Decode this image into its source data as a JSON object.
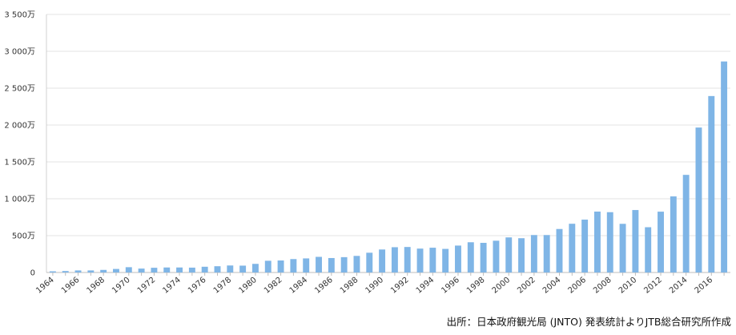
{
  "chart_data": {
    "type": "bar",
    "title": "",
    "xlabel": "",
    "ylabel": "",
    "ylim": [
      0,
      3500
    ],
    "y_ticks": [
      0,
      500,
      1000,
      1500,
      2000,
      2500,
      3000,
      3500
    ],
    "y_tick_labels": [
      "0",
      "500万",
      "1 000万",
      "1 500万",
      "2 000万",
      "2 500万",
      "3 000万",
      "3 500万"
    ],
    "grid": "horizontal",
    "bar_color": "#7fb5e6",
    "categories": [
      "1964",
      "1965",
      "1966",
      "1967",
      "1968",
      "1969",
      "1970",
      "1971",
      "1972",
      "1973",
      "1974",
      "1975",
      "1976",
      "1977",
      "1978",
      "1979",
      "1980",
      "1981",
      "1982",
      "1983",
      "1984",
      "1985",
      "1986",
      "1987",
      "1988",
      "1989",
      "1990",
      "1991",
      "1992",
      "1993",
      "1994",
      "1995",
      "1996",
      "1997",
      "1998",
      "1999",
      "2000",
      "2001",
      "2002",
      "2003",
      "2004",
      "2005",
      "2006",
      "2007",
      "2008",
      "2009",
      "2010",
      "2011",
      "2012",
      "2013",
      "2014",
      "2015",
      "2016",
      "2017"
    ],
    "x_tick_labels": [
      "1964",
      "",
      "1966",
      "",
      "1968",
      "",
      "1970",
      "",
      "1972",
      "",
      "1974",
      "",
      "1976",
      "",
      "1978",
      "",
      "1980",
      "",
      "1982",
      "",
      "1984",
      "",
      "1986",
      "",
      "1988",
      "",
      "1990",
      "",
      "1992",
      "",
      "1994",
      "",
      "1996",
      "",
      "1998",
      "",
      "2000",
      "",
      "2002",
      "",
      "2004",
      "",
      "2006",
      "",
      "2008",
      "",
      "2010",
      "",
      "2012",
      "",
      "2014",
      "",
      "2016",
      ""
    ],
    "values": [
      16,
      20,
      28,
      28,
      35,
      48,
      72,
      53,
      64,
      68,
      68,
      66,
      78,
      85,
      95,
      93,
      117,
      159,
      163,
      182,
      191,
      212,
      196,
      208,
      225,
      268,
      312,
      343,
      346,
      324,
      336,
      320,
      365,
      410,
      402,
      431,
      476,
      465,
      508,
      508,
      590,
      661,
      717,
      826,
      818,
      660,
      847,
      614,
      825,
      1032,
      1324,
      1966,
      2393,
      2862
    ],
    "source": "出所：日本政府観光局 (JNTO) 発表統計よりJTB総合研究所作成"
  }
}
